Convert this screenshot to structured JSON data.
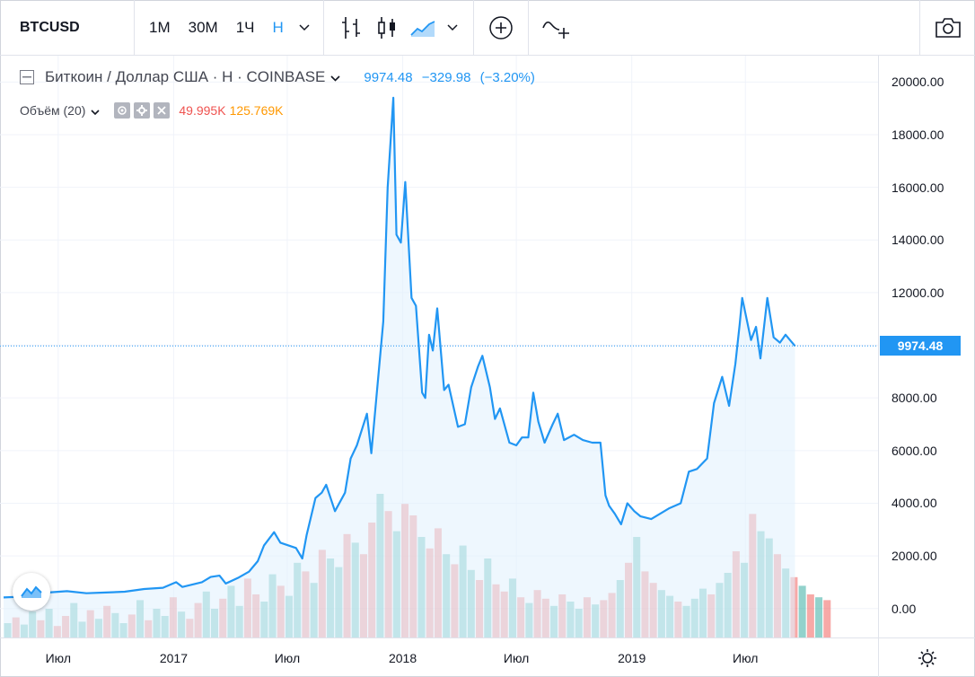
{
  "toolbar": {
    "symbol": "BTCUSD",
    "intervals": [
      "1M",
      "30M",
      "1Ч",
      "Н"
    ],
    "active_interval": "Н"
  },
  "legend": {
    "title": "Биткоин / Доллар США · Н · COINBASE",
    "last": "9974.48",
    "change": "−329.98",
    "change_pct": "(−3.20%)",
    "volume_label": "Объём (20)",
    "volume_value": "49.995K",
    "volume_ma": "125.769K"
  },
  "colors": {
    "line": "#2196f3",
    "area": "#e3f2fd",
    "vol_up": "#26a69a",
    "vol_down": "#ef5350",
    "accent": "#2196f3"
  },
  "chart_data": {
    "type": "area",
    "title": "",
    "ylim": [
      -1100,
      21000
    ],
    "y_ticks": [
      20000,
      18000,
      16000,
      14000,
      12000,
      10000,
      8000,
      6000,
      4000,
      2000,
      0
    ],
    "y_tick_labels": [
      "20000.00",
      "18000.00",
      "16000.00",
      "14000.00",
      "12000.00",
      "",
      "8000.00",
      "6000.00",
      "4000.00",
      "2000.00",
      "0.00"
    ],
    "last_price_label": "9974.48",
    "last_price": 9974.48,
    "x_tick_labels": [
      {
        "label": "Июл",
        "date": "2016-07-01"
      },
      {
        "label": "2017",
        "date": "2017-01-01"
      },
      {
        "label": "Июл",
        "date": "2017-07-01"
      },
      {
        "label": "2018",
        "date": "2018-01-01"
      },
      {
        "label": "Июл",
        "date": "2018-07-01"
      },
      {
        "label": "2019",
        "date": "2019-01-01"
      },
      {
        "label": "Июл",
        "date": "2019-07-01"
      }
    ],
    "xlim": [
      "2016-04-05",
      "2019-11-15"
    ],
    "series": [
      {
        "points": [
          [
            "2016-04-05",
            420
          ],
          [
            "2016-05-01",
            450
          ],
          [
            "2016-06-01",
            580
          ],
          [
            "2016-06-20",
            620
          ],
          [
            "2016-07-15",
            660
          ],
          [
            "2016-08-15",
            580
          ],
          [
            "2016-09-15",
            610
          ],
          [
            "2016-10-15",
            640
          ],
          [
            "2016-11-15",
            740
          ],
          [
            "2016-12-15",
            790
          ],
          [
            "2017-01-05",
            1000
          ],
          [
            "2017-01-15",
            820
          ],
          [
            "2017-02-15",
            1000
          ],
          [
            "2017-03-01",
            1200
          ],
          [
            "2017-03-15",
            1250
          ],
          [
            "2017-03-25",
            950
          ],
          [
            "2017-04-15",
            1180
          ],
          [
            "2017-05-01",
            1400
          ],
          [
            "2017-05-15",
            1800
          ],
          [
            "2017-05-25",
            2400
          ],
          [
            "2017-06-10",
            2900
          ],
          [
            "2017-06-20",
            2500
          ],
          [
            "2017-07-15",
            2300
          ],
          [
            "2017-07-25",
            1900
          ],
          [
            "2017-08-01",
            2800
          ],
          [
            "2017-08-15",
            4200
          ],
          [
            "2017-08-25",
            4400
          ],
          [
            "2017-09-01",
            4700
          ],
          [
            "2017-09-15",
            3700
          ],
          [
            "2017-10-01",
            4400
          ],
          [
            "2017-10-10",
            5700
          ],
          [
            "2017-10-20",
            6200
          ],
          [
            "2017-11-05",
            7400
          ],
          [
            "2017-11-12",
            5900
          ],
          [
            "2017-11-20",
            8000
          ],
          [
            "2017-12-01",
            10900
          ],
          [
            "2017-12-08",
            16000
          ],
          [
            "2017-12-17",
            19400
          ],
          [
            "2017-12-22",
            14200
          ],
          [
            "2017-12-29",
            13900
          ],
          [
            "2018-01-05",
            16200
          ],
          [
            "2018-01-15",
            11800
          ],
          [
            "2018-01-22",
            11500
          ],
          [
            "2018-02-01",
            8200
          ],
          [
            "2018-02-06",
            8000
          ],
          [
            "2018-02-12",
            10400
          ],
          [
            "2018-02-18",
            9800
          ],
          [
            "2018-02-25",
            11400
          ],
          [
            "2018-03-08",
            8300
          ],
          [
            "2018-03-15",
            8500
          ],
          [
            "2018-03-30",
            6900
          ],
          [
            "2018-04-10",
            7000
          ],
          [
            "2018-04-20",
            8400
          ],
          [
            "2018-05-01",
            9200
          ],
          [
            "2018-05-08",
            9600
          ],
          [
            "2018-05-20",
            8400
          ],
          [
            "2018-05-28",
            7200
          ],
          [
            "2018-06-05",
            7600
          ],
          [
            "2018-06-20",
            6300
          ],
          [
            "2018-07-01",
            6200
          ],
          [
            "2018-07-10",
            6500
          ],
          [
            "2018-07-20",
            6500
          ],
          [
            "2018-07-28",
            8200
          ],
          [
            "2018-08-05",
            7100
          ],
          [
            "2018-08-15",
            6300
          ],
          [
            "2018-08-28",
            7000
          ],
          [
            "2018-09-05",
            7400
          ],
          [
            "2018-09-15",
            6400
          ],
          [
            "2018-10-01",
            6600
          ],
          [
            "2018-10-15",
            6400
          ],
          [
            "2018-10-30",
            6300
          ],
          [
            "2018-11-12",
            6300
          ],
          [
            "2018-11-20",
            4300
          ],
          [
            "2018-11-26",
            3900
          ],
          [
            "2018-12-05",
            3600
          ],
          [
            "2018-12-15",
            3200
          ],
          [
            "2018-12-25",
            4000
          ],
          [
            "2019-01-05",
            3700
          ],
          [
            "2019-01-15",
            3500
          ],
          [
            "2019-02-01",
            3400
          ],
          [
            "2019-02-15",
            3600
          ],
          [
            "2019-03-01",
            3800
          ],
          [
            "2019-03-20",
            4000
          ],
          [
            "2019-04-02",
            5200
          ],
          [
            "2019-04-15",
            5300
          ],
          [
            "2019-05-01",
            5700
          ],
          [
            "2019-05-12",
            7800
          ],
          [
            "2019-05-25",
            8800
          ],
          [
            "2019-06-05",
            7700
          ],
          [
            "2019-06-15",
            9300
          ],
          [
            "2019-06-22",
            10800
          ],
          [
            "2019-06-26",
            11800
          ],
          [
            "2019-07-10",
            10200
          ],
          [
            "2019-07-18",
            10700
          ],
          [
            "2019-07-25",
            9500
          ],
          [
            "2019-08-05",
            11800
          ],
          [
            "2019-08-15",
            10300
          ],
          [
            "2019-08-25",
            10100
          ],
          [
            "2019-09-03",
            10400
          ],
          [
            "2019-09-10",
            10200
          ],
          [
            "2019-09-18",
            9974.48
          ]
        ]
      }
    ],
    "volume": {
      "name": "Объём (20)",
      "values_relative": [
        0.1,
        0.14,
        0.09,
        0.18,
        0.12,
        0.2,
        0.08,
        0.15,
        0.24,
        0.11,
        0.19,
        0.13,
        0.22,
        0.17,
        0.1,
        0.16,
        0.26,
        0.12,
        0.2,
        0.15,
        0.28,
        0.18,
        0.13,
        0.24,
        0.32,
        0.2,
        0.27,
        0.36,
        0.22,
        0.41,
        0.3,
        0.25,
        0.44,
        0.36,
        0.29,
        0.52,
        0.46,
        0.38,
        0.61,
        0.55,
        0.49,
        0.72,
        0.66,
        0.58,
        0.8,
        1.0,
        0.88,
        0.74,
        0.93,
        0.85,
        0.7,
        0.62,
        0.76,
        0.58,
        0.51,
        0.64,
        0.47,
        0.4,
        0.55,
        0.37,
        0.32,
        0.41,
        0.28,
        0.24,
        0.33,
        0.27,
        0.22,
        0.3,
        0.25,
        0.2,
        0.28,
        0.23,
        0.26,
        0.31,
        0.4,
        0.52,
        0.7,
        0.46,
        0.38,
        0.33,
        0.29,
        0.25,
        0.22,
        0.27,
        0.34,
        0.3,
        0.38,
        0.45,
        0.6,
        0.52,
        0.86,
        0.74,
        0.69,
        0.58,
        0.48,
        0.42,
        0.36,
        0.3,
        0.28,
        0.26
      ],
      "up_pattern": [
        1,
        0,
        1,
        1,
        0,
        1,
        0,
        0,
        1,
        1,
        0,
        1,
        0,
        1,
        1,
        0,
        1,
        0,
        1,
        1,
        0,
        1,
        0,
        0,
        1,
        1,
        0,
        1,
        1,
        0,
        0,
        1,
        1,
        0,
        1,
        1,
        0,
        1,
        0,
        1,
        1,
        0,
        1,
        0,
        0,
        1,
        0,
        1,
        0,
        0,
        1,
        0,
        0,
        1,
        0,
        1,
        1,
        0,
        1,
        0,
        0,
        1,
        0,
        1,
        0,
        0,
        1,
        0,
        1,
        1,
        0,
        1,
        0,
        0,
        1,
        0,
        1,
        0,
        0,
        1,
        1,
        0,
        1,
        1,
        1,
        0,
        1,
        1,
        0,
        1,
        0,
        1,
        1,
        0,
        1,
        0,
        1,
        0,
        1,
        0
      ]
    }
  }
}
